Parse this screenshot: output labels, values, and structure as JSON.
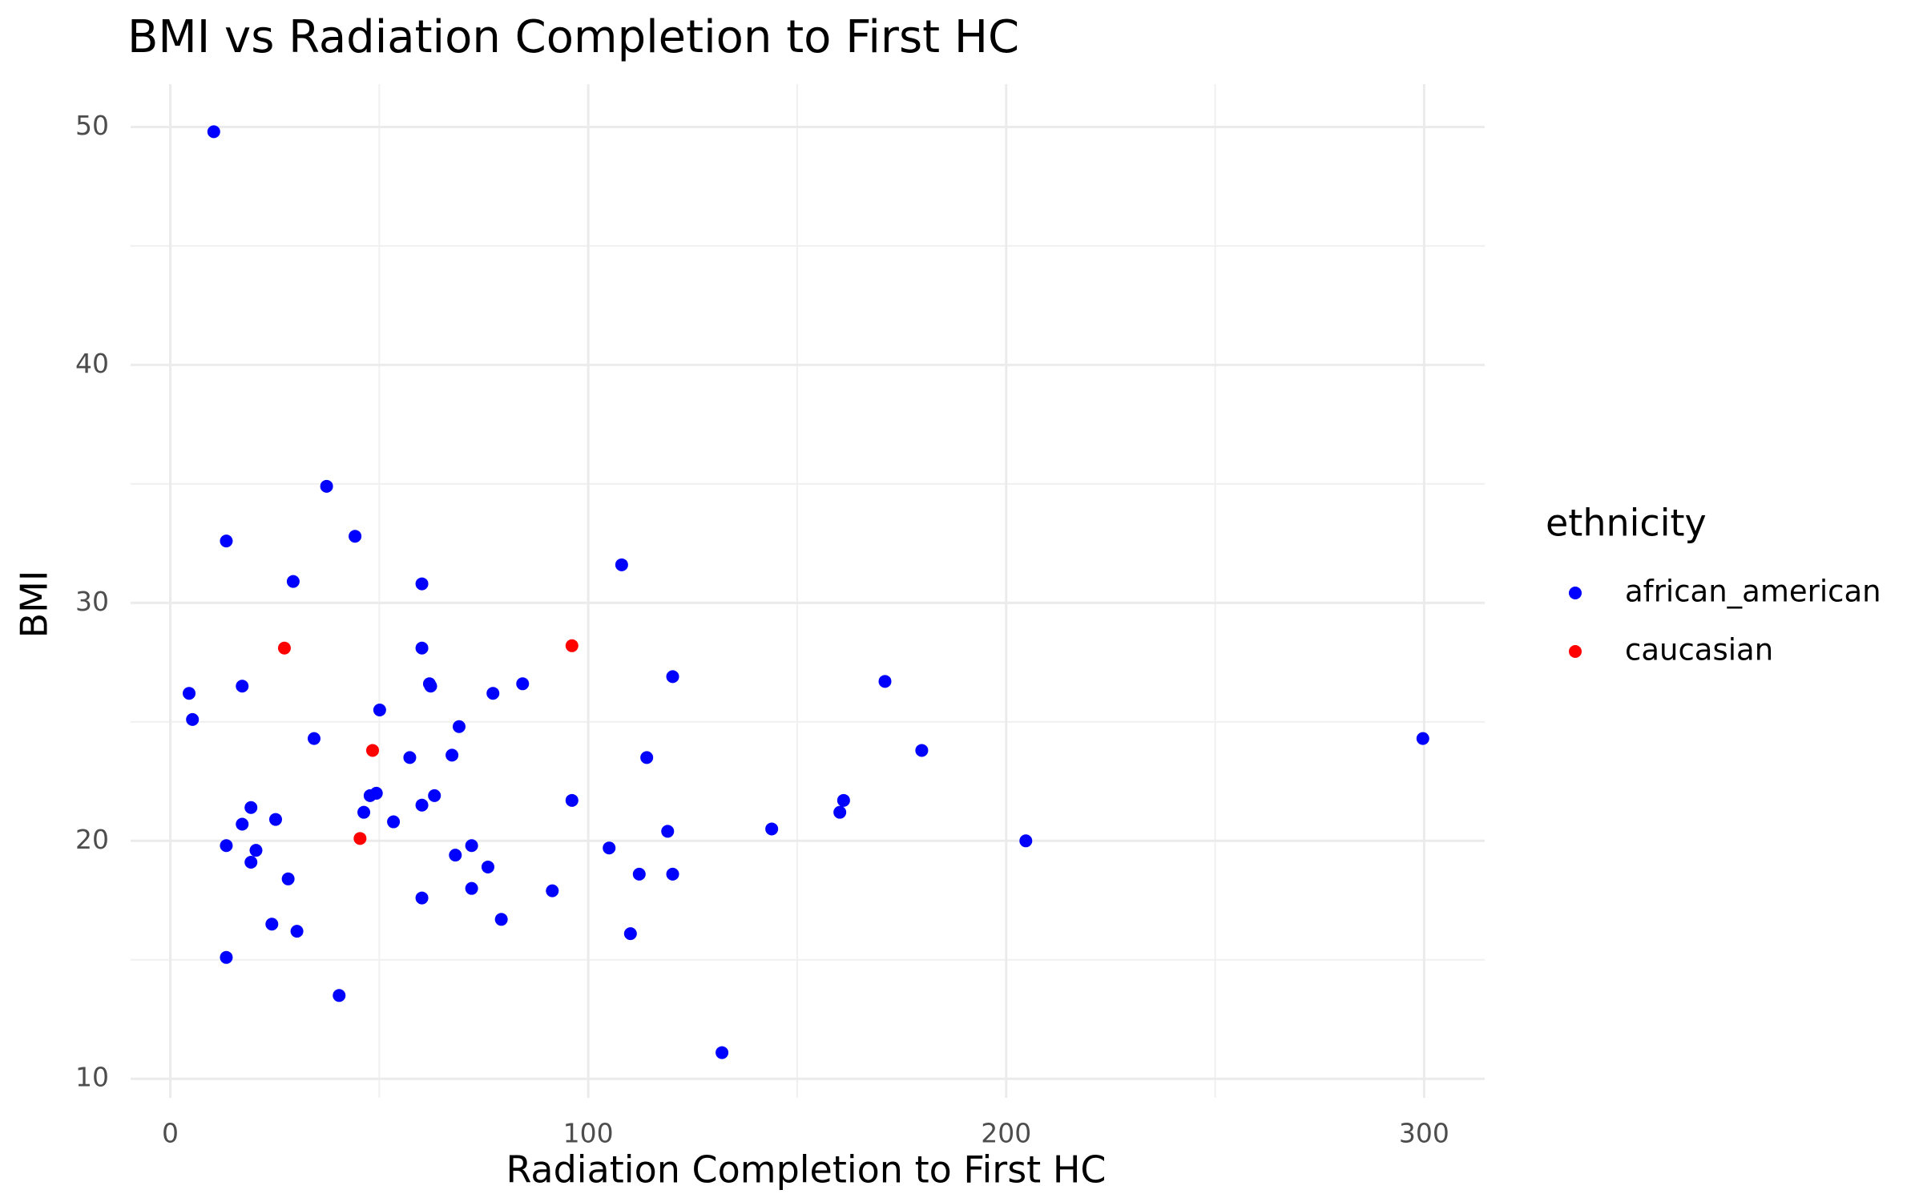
{
  "chart_data": {
    "type": "scatter",
    "title": "BMI vs Radiation Completion to First HC",
    "x_label": "Radiation Completion to First HC",
    "y_label": "BMI",
    "legend_title": "ethnicity",
    "legend_position": "right",
    "grid": true,
    "xlim": [
      -9.5,
      314.5
    ],
    "ylim": [
      9.2,
      51.8
    ],
    "xticks": [
      0,
      100,
      200,
      300
    ],
    "yticks": [
      10,
      20,
      30,
      40,
      50
    ],
    "xminor": [
      50,
      150,
      250
    ],
    "yminor": [
      15,
      25,
      35,
      45
    ],
    "series": [
      {
        "name": "african_american",
        "color": "#0000ff",
        "x": [
          10.4,
          13.4,
          37.4,
          44.2,
          29.4,
          60.2,
          108,
          60.2,
          4.5,
          5.3,
          17.2,
          62,
          62.3,
          77.2,
          84.3,
          120.2,
          171,
          50.1,
          69.1,
          34.4,
          57.3,
          67.4,
          114,
          179.8,
          299.7,
          47.8,
          49.3,
          63.2,
          96.1,
          161.1,
          160.2,
          19.3,
          46.3,
          60.2,
          17.2,
          25.2,
          53.4,
          119,
          143.9,
          204.7,
          13.4,
          20.5,
          72.1,
          105,
          19.3,
          68.2,
          76,
          28.2,
          112.2,
          120.2,
          72.1,
          91.4,
          60.2,
          79.2,
          24.3,
          30.3,
          110.1,
          13.4,
          40.4,
          132
        ],
        "y": [
          49.8,
          32.6,
          34.9,
          32.8,
          30.9,
          30.8,
          31.6,
          28.1,
          26.2,
          25.1,
          26.5,
          26.6,
          26.5,
          26.2,
          26.6,
          26.9,
          26.7,
          25.5,
          24.8,
          24.3,
          23.5,
          23.6,
          23.5,
          23.8,
          24.3,
          21.9,
          22.0,
          21.9,
          21.7,
          21.7,
          21.2,
          21.4,
          21.2,
          21.5,
          20.7,
          20.9,
          20.8,
          20.4,
          20.5,
          20.0,
          19.8,
          19.6,
          19.8,
          19.7,
          19.1,
          19.4,
          18.9,
          18.4,
          18.6,
          18.6,
          18.0,
          17.9,
          17.6,
          16.7,
          16.5,
          16.2,
          16.1,
          15.1,
          13.5,
          11.1
        ]
      },
      {
        "name": "caucasian",
        "color": "#ff0000",
        "x": [
          27.3,
          96.1,
          48.4,
          45.4
        ],
        "y": [
          28.1,
          28.2,
          23.8,
          20.1
        ]
      }
    ]
  }
}
